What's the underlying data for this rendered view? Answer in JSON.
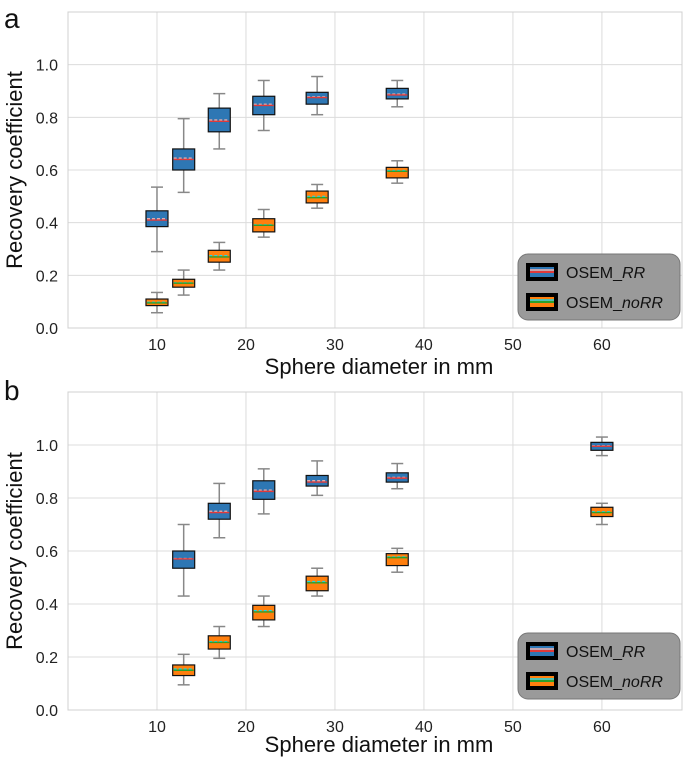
{
  "chart_data": [
    {
      "panel_label": "a",
      "type": "box",
      "xlabel": "Sphere diameter in mm",
      "ylabel": "Recovery coefficient",
      "xlim": [
        0,
        69
      ],
      "ylim": [
        0,
        1.2
      ],
      "xticks": [
        10,
        20,
        30,
        40,
        50,
        60
      ],
      "yticks": [
        0.0,
        0.2,
        0.4,
        0.6,
        0.8,
        1.0
      ],
      "grid": true,
      "legend_position": "bottom-right",
      "series": [
        {
          "name": "OSEM_RR",
          "legend_prefix": "OSEM_",
          "legend_italic": "RR",
          "box_color": "#2e77b4",
          "median_color": "#e03a3a",
          "mean_color": "#f6b6b0",
          "boxes": [
            {
              "x": 10,
              "whislo": 0.29,
              "q1": 0.385,
              "med": 0.41,
              "mean": 0.415,
              "q3": 0.445,
              "whishi": 0.535
            },
            {
              "x": 13,
              "whislo": 0.515,
              "q1": 0.6,
              "med": 0.64,
              "mean": 0.645,
              "q3": 0.68,
              "whishi": 0.795
            },
            {
              "x": 17,
              "whislo": 0.68,
              "q1": 0.745,
              "med": 0.785,
              "mean": 0.79,
              "q3": 0.835,
              "whishi": 0.89
            },
            {
              "x": 22,
              "whislo": 0.75,
              "q1": 0.81,
              "med": 0.845,
              "mean": 0.85,
              "q3": 0.88,
              "whishi": 0.94
            },
            {
              "x": 28,
              "whislo": 0.81,
              "q1": 0.85,
              "med": 0.875,
              "mean": 0.878,
              "q3": 0.895,
              "whishi": 0.955
            },
            {
              "x": 37,
              "whislo": 0.84,
              "q1": 0.87,
              "med": 0.885,
              "mean": 0.888,
              "q3": 0.91,
              "whishi": 0.94
            }
          ]
        },
        {
          "name": "OSEM_noRR",
          "legend_prefix": "OSEM_",
          "legend_italic": "noRR",
          "box_color": "#ff7f0e",
          "median_color": "#2ca02c",
          "mean_color": "#17d8e8",
          "boxes": [
            {
              "x": 10,
              "whislo": 0.058,
              "q1": 0.085,
              "med": 0.095,
              "mean": 0.098,
              "q3": 0.11,
              "whishi": 0.135
            },
            {
              "x": 13,
              "whislo": 0.125,
              "q1": 0.155,
              "med": 0.17,
              "mean": 0.172,
              "q3": 0.185,
              "whishi": 0.22
            },
            {
              "x": 17,
              "whislo": 0.22,
              "q1": 0.25,
              "med": 0.27,
              "mean": 0.275,
              "q3": 0.295,
              "whishi": 0.325
            },
            {
              "x": 22,
              "whislo": 0.345,
              "q1": 0.365,
              "med": 0.39,
              "mean": 0.392,
              "q3": 0.415,
              "whishi": 0.45
            },
            {
              "x": 28,
              "whislo": 0.455,
              "q1": 0.475,
              "med": 0.495,
              "mean": 0.5,
              "q3": 0.52,
              "whishi": 0.545
            },
            {
              "x": 37,
              "whislo": 0.55,
              "q1": 0.57,
              "med": 0.595,
              "mean": 0.598,
              "q3": 0.61,
              "whishi": 0.635
            }
          ]
        }
      ]
    },
    {
      "panel_label": "b",
      "type": "box",
      "xlabel": "Sphere diameter in mm",
      "ylabel": "Recovery coefficient",
      "xlim": [
        0,
        69
      ],
      "ylim": [
        0,
        1.2
      ],
      "xticks": [
        10,
        20,
        30,
        40,
        50,
        60
      ],
      "yticks": [
        0.0,
        0.2,
        0.4,
        0.6,
        0.8,
        1.0
      ],
      "grid": true,
      "legend_position": "bottom-right",
      "series": [
        {
          "name": "OSEM_RR",
          "legend_prefix": "OSEM_",
          "legend_italic": "RR",
          "box_color": "#2e77b4",
          "median_color": "#e03a3a",
          "mean_color": "#f6b6b0",
          "boxes": [
            {
              "x": 13,
              "whislo": 0.43,
              "q1": 0.535,
              "med": 0.57,
              "mean": 0.572,
              "q3": 0.6,
              "whishi": 0.7
            },
            {
              "x": 17,
              "whislo": 0.65,
              "q1": 0.72,
              "med": 0.745,
              "mean": 0.75,
              "q3": 0.78,
              "whishi": 0.855
            },
            {
              "x": 22,
              "whislo": 0.74,
              "q1": 0.795,
              "med": 0.825,
              "mean": 0.83,
              "q3": 0.865,
              "whishi": 0.91
            },
            {
              "x": 28,
              "whislo": 0.81,
              "q1": 0.845,
              "med": 0.86,
              "mean": 0.865,
              "q3": 0.885,
              "whishi": 0.94
            },
            {
              "x": 37,
              "whislo": 0.835,
              "q1": 0.86,
              "med": 0.875,
              "mean": 0.878,
              "q3": 0.895,
              "whishi": 0.93
            },
            {
              "x": 60,
              "whislo": 0.96,
              "q1": 0.98,
              "med": 0.995,
              "mean": 0.997,
              "q3": 1.01,
              "whishi": 1.03
            }
          ]
        },
        {
          "name": "OSEM_noRR",
          "legend_prefix": "OSEM_",
          "legend_italic": "noRR",
          "box_color": "#ff7f0e",
          "median_color": "#2ca02c",
          "mean_color": "#17d8e8",
          "boxes": [
            {
              "x": 13,
              "whislo": 0.095,
              "q1": 0.13,
              "med": 0.15,
              "mean": 0.155,
              "q3": 0.17,
              "whishi": 0.21
            },
            {
              "x": 17,
              "whislo": 0.195,
              "q1": 0.23,
              "med": 0.255,
              "mean": 0.258,
              "q3": 0.28,
              "whishi": 0.315
            },
            {
              "x": 22,
              "whislo": 0.315,
              "q1": 0.34,
              "med": 0.37,
              "mean": 0.375,
              "q3": 0.395,
              "whishi": 0.43
            },
            {
              "x": 28,
              "whislo": 0.43,
              "q1": 0.45,
              "med": 0.48,
              "mean": 0.485,
              "q3": 0.505,
              "whishi": 0.535
            },
            {
              "x": 37,
              "whislo": 0.52,
              "q1": 0.545,
              "med": 0.575,
              "mean": 0.578,
              "q3": 0.59,
              "whishi": 0.61
            },
            {
              "x": 60,
              "whislo": 0.7,
              "q1": 0.73,
              "med": 0.745,
              "mean": 0.748,
              "q3": 0.765,
              "whishi": 0.78
            }
          ]
        }
      ]
    }
  ]
}
